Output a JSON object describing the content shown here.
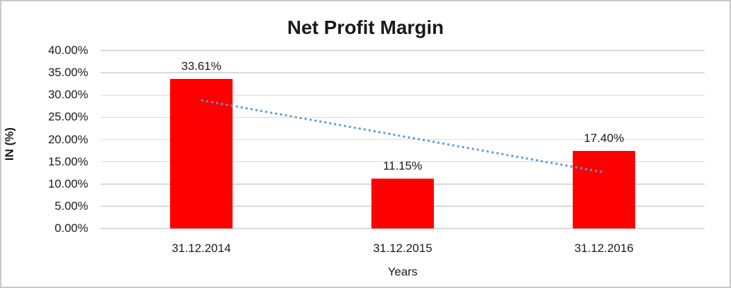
{
  "chart_data": {
    "type": "bar",
    "title": "Net Profit Margin",
    "xlabel": "Years",
    "ylabel": "IN (%)",
    "categories": [
      "31.12.2014",
      "31.12.2015",
      "31.12.2016"
    ],
    "series": [
      {
        "name": "Net Profit Margin",
        "values": [
          33.61,
          11.15,
          17.4
        ]
      }
    ],
    "data_labels": [
      "33.61%",
      "11.15%",
      "17.40%"
    ],
    "ylim": [
      0,
      40
    ],
    "ytick_step": 5,
    "ytick_labels": [
      "0.00%",
      "5.00%",
      "10.00%",
      "15.00%",
      "20.00%",
      "25.00%",
      "30.00%",
      "35.00%",
      "40.00%"
    ],
    "grid": true,
    "legend_position": "none",
    "colors": {
      "bar": "#ff0000",
      "trendline": "#5b9bd5",
      "gridline": "#d9d9d9",
      "text": "#1a1a1a",
      "chart_border": "#c9c9c9"
    },
    "trendline": {
      "type": "linear",
      "style": "dotted",
      "start_value": 28.83,
      "end_value": 12.62
    }
  }
}
